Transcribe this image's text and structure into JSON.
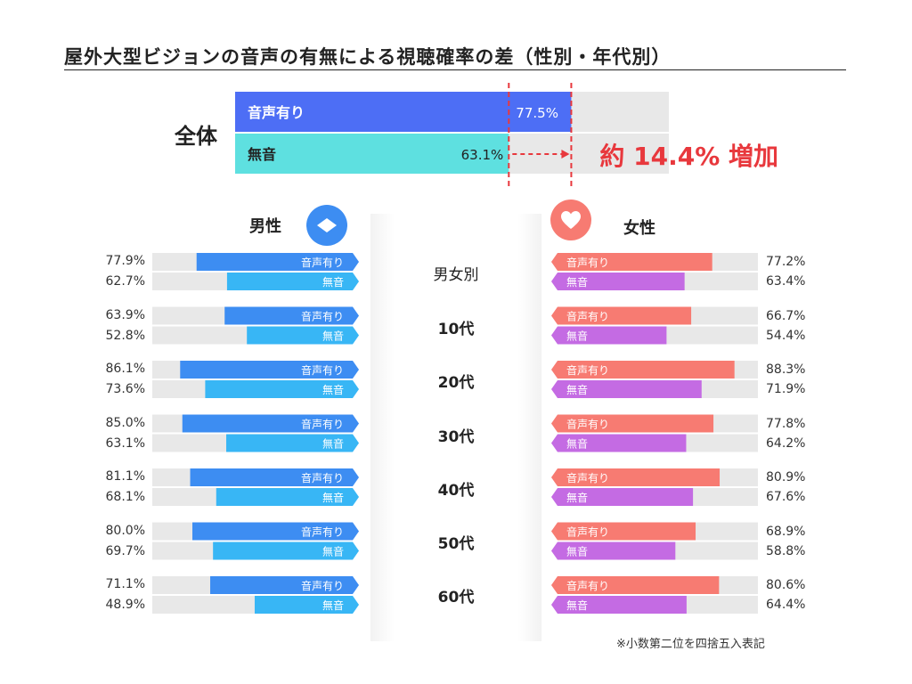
{
  "title": "屋外大型ビジョンの音声の有無による視聴確率の差（性別・年代別）",
  "note": "※小数第二位を四捨五入表記",
  "chart_data": {
    "type": "bar",
    "max": 100,
    "overall": {
      "label": "全体",
      "bars": [
        {
          "name": "音声有り",
          "value": 77.5,
          "value_label": "77.5%"
        },
        {
          "name": "無音",
          "value": 63.1,
          "value_label": "63.1%"
        }
      ],
      "difference_label": "約 14.4% 増加"
    },
    "center_label": "男女別",
    "series_labels": {
      "with_sound": "音声有り",
      "silent": "無音"
    },
    "categories": [
      "男女別",
      "10代",
      "20代",
      "30代",
      "40代",
      "50代",
      "60代"
    ],
    "male": {
      "title": "男性",
      "with_sound": [
        77.9,
        63.9,
        86.1,
        85.0,
        81.1,
        80.0,
        71.1
      ],
      "silent": [
        62.7,
        52.8,
        73.6,
        63.1,
        68.1,
        69.7,
        48.9
      ],
      "with_sound_labels": [
        "77.9%",
        "63.9%",
        "86.1%",
        "85.0%",
        "81.1%",
        "80.0%",
        "71.1%"
      ],
      "silent_labels": [
        "62.7%",
        "52.8%",
        "73.6%",
        "63.1%",
        "68.1%",
        "69.7%",
        "48.9%"
      ]
    },
    "female": {
      "title": "女性",
      "with_sound": [
        77.2,
        66.7,
        88.3,
        77.8,
        80.9,
        68.9,
        80.6
      ],
      "silent": [
        63.4,
        54.4,
        71.9,
        64.2,
        67.6,
        58.8,
        64.4
      ],
      "with_sound_labels": [
        "77.2%",
        "66.7%",
        "88.3%",
        "77.8%",
        "80.9%",
        "68.9%",
        "80.6%"
      ],
      "silent_labels": [
        "63.4%",
        "54.4%",
        "71.9%",
        "64.2%",
        "67.6%",
        "58.8%",
        "64.4%"
      ]
    },
    "colors": {
      "overall_with_sound": "#4d6ef5",
      "overall_silent": "#5ee0e0",
      "male_with_sound": "#3d8df2",
      "male_silent": "#38b6f5",
      "female_with_sound": "#f77b72",
      "female_silent": "#c46be3",
      "track": "#e8e8e8",
      "accent": "#e8383d"
    }
  }
}
